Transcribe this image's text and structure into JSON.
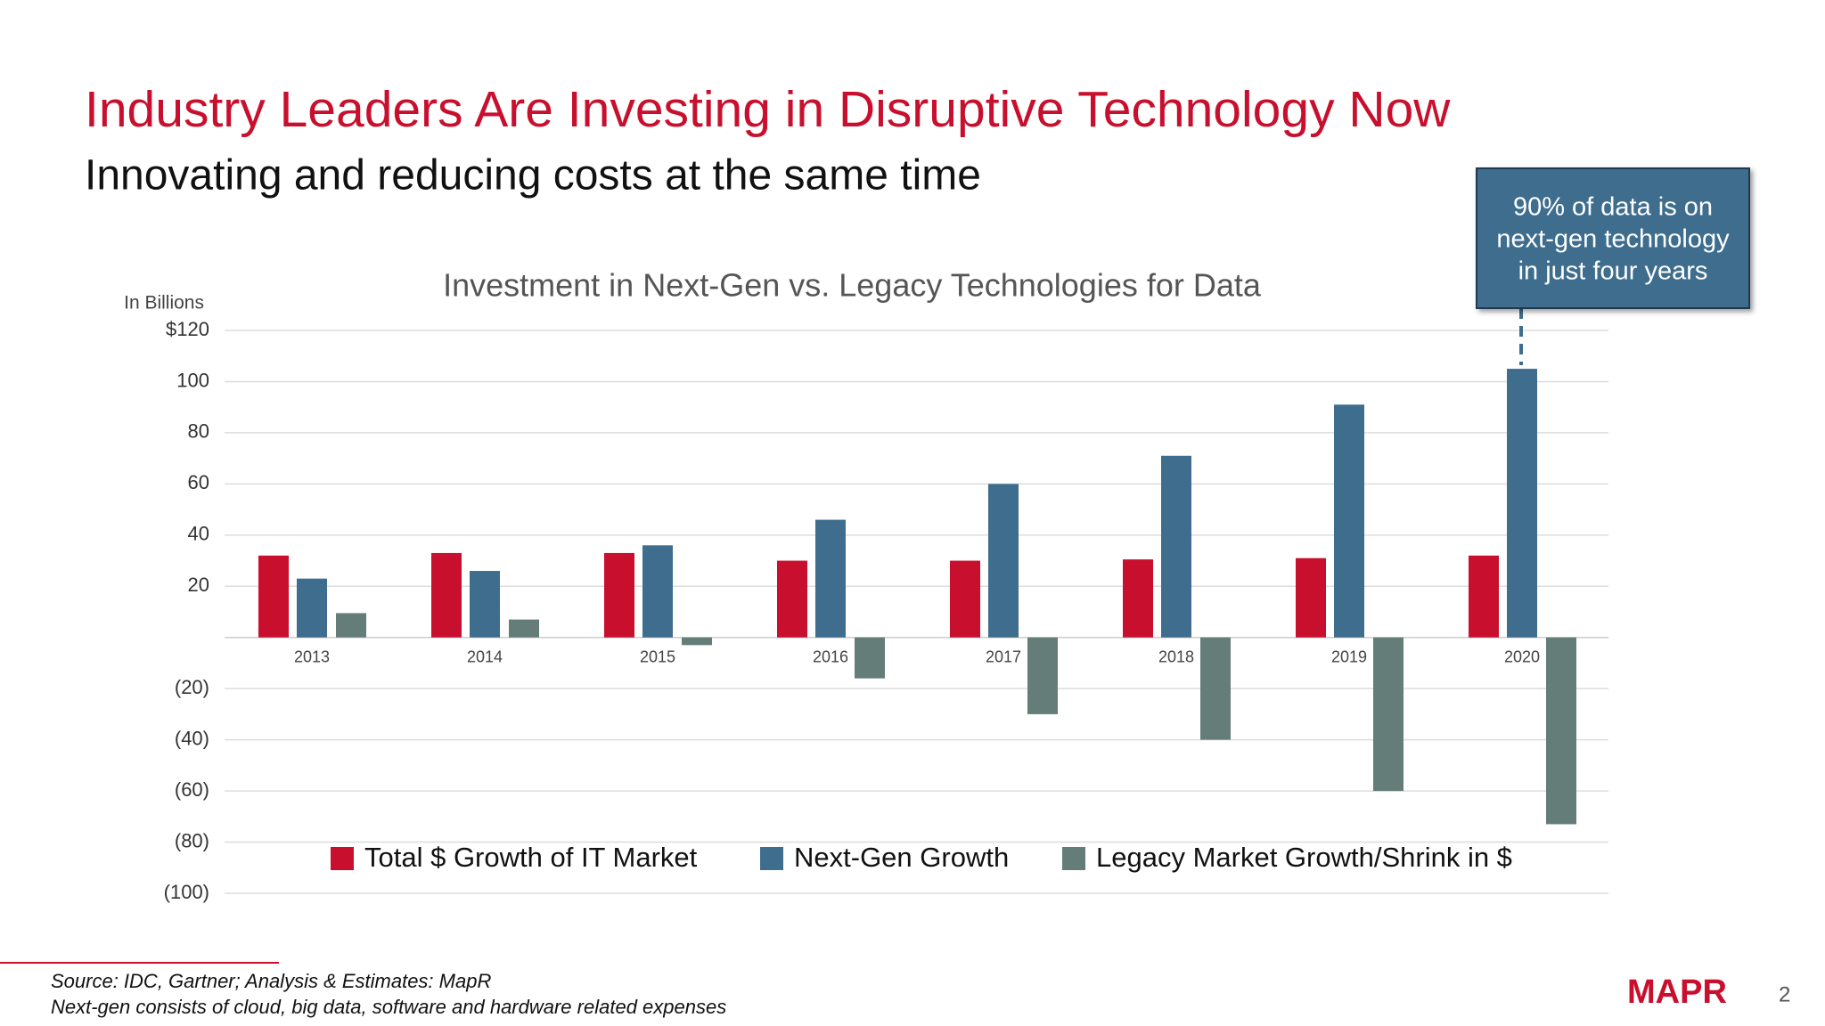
{
  "slide": {
    "title": "Industry Leaders Are Investing in Disruptive Technology Now",
    "subtitle": "Innovating and reducing costs at the same time",
    "footnotes": [
      "Source: IDC, Gartner; Analysis & Estimates: MapR",
      "Next-gen consists of cloud, big data, software and hardware related expenses"
    ],
    "logo": "MAPR",
    "page_number": "2"
  },
  "chart_data": {
    "type": "bar",
    "title": "Investment in Next-Gen vs. Legacy Technologies for Data",
    "y_label": "In Billions",
    "annotation": [
      "90% of data is on",
      "next-gen technology",
      "in just four years"
    ],
    "categories": [
      "2013",
      "2014",
      "2015",
      "2016",
      "2017",
      "2018",
      "2019",
      "2020"
    ],
    "series": [
      {
        "name": "Total $ Growth of IT Market",
        "color": "#c8102e",
        "values": [
          32,
          33,
          33,
          30,
          30,
          30.5,
          31,
          32
        ]
      },
      {
        "name": "Next-Gen Growth",
        "color": "#3e6d8e",
        "values": [
          23,
          26,
          36,
          46,
          60,
          71,
          91,
          105
        ]
      },
      {
        "name": "Legacy Market Growth/Shrink in $",
        "color": "#647d78",
        "values": [
          9.5,
          7,
          -3,
          -16,
          -30,
          -40,
          -60,
          -73
        ]
      }
    ],
    "ylim": [
      -100,
      120
    ],
    "yticks": [
      {
        "value": 120,
        "label": "$120"
      },
      100,
      80,
      60,
      40,
      20,
      {
        "value": -20,
        "label": "(20)"
      },
      {
        "value": -40,
        "label": "(40)"
      },
      {
        "value": -60,
        "label": "(60)"
      },
      {
        "value": -80,
        "label": "(80)"
      },
      {
        "value": -100,
        "label": "(100)"
      }
    ],
    "grid": true
  }
}
